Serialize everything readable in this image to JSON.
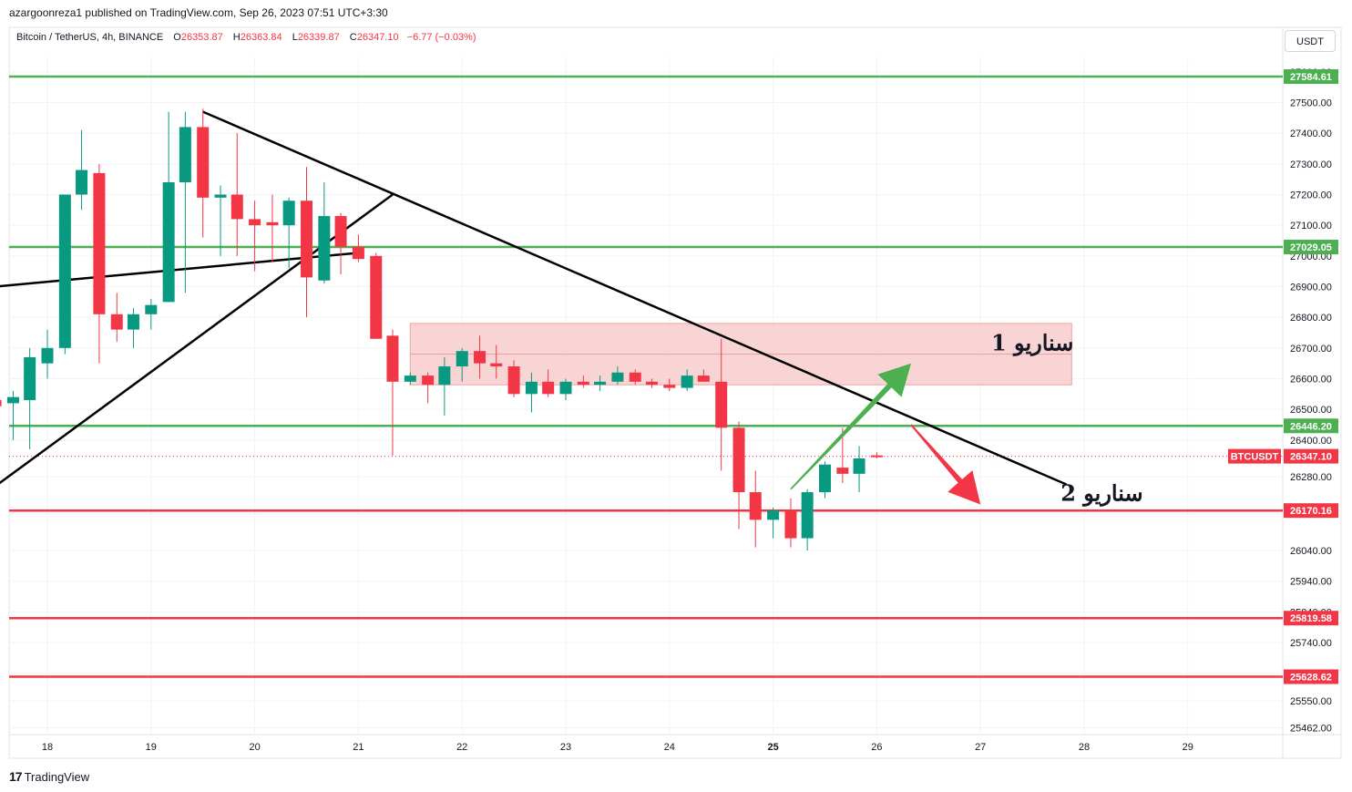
{
  "publisher": "azargoonreza1 published on TradingView.com, Sep 26, 2023 07:51 UTC+3:30",
  "legend": {
    "symbol": "Bitcoin / TetherUS, 4h, BINANCE",
    "open_label": "O",
    "open": "26353.87",
    "high_label": "H",
    "high": "26363.84",
    "low_label": "L",
    "low": "26339.87",
    "close_label": "C",
    "close": "26347.10",
    "change": "−6.77 (−0.03%)"
  },
  "currency": "USDT",
  "footer": {
    "logo_mark": "17",
    "logo_text": "TradingView"
  },
  "colors": {
    "up": "#089981",
    "down": "#f23645",
    "support_line": "#4caf50",
    "resistance_line": "#f23645",
    "zone_fill": "#f7c9c9",
    "arrow_up": "#4caf50",
    "arrow_down": "#f23645"
  },
  "chart_data": {
    "type": "candlestick",
    "symbol": "BTCUSDT",
    "interval": "4h",
    "ylim": [
      25440,
      27650
    ],
    "y_ticks": [
      25462,
      25550,
      25640,
      25740,
      25840,
      25940,
      26040,
      26160,
      26280,
      26400,
      26500,
      26600,
      26700,
      26800,
      26900,
      27000,
      27100,
      27200,
      27300,
      27400,
      27500,
      27600
    ],
    "x_day_labels": [
      "18",
      "19",
      "20",
      "21",
      "22",
      "23",
      "24",
      "25",
      "26",
      "27",
      "28",
      "29"
    ],
    "x_bold_label": "25",
    "last_price": {
      "value": 26347.1,
      "label": "26347.10",
      "ticker": "BTCUSDT"
    },
    "horizontal_levels": [
      {
        "value": 27584.61,
        "label": "27584.61",
        "kind": "support"
      },
      {
        "value": 27029.05,
        "label": "27029.05",
        "kind": "support"
      },
      {
        "value": 26446.2,
        "label": "26446.20",
        "kind": "support"
      },
      {
        "value": 26170.16,
        "label": "26170.16",
        "kind": "resistance"
      },
      {
        "value": 25819.58,
        "label": "25819.58",
        "kind": "resistance"
      },
      {
        "value": 25628.62,
        "label": "25628.62",
        "kind": "resistance"
      }
    ],
    "zone": {
      "top": 26780,
      "bottom": 26580,
      "mid": 26680,
      "x_start": 21.5,
      "x_end": 27.88
    },
    "trendlines": [
      {
        "x1": 17.5,
        "y1": 26900,
        "x2": 21.0,
        "y2": 27010
      },
      {
        "x1": 17.5,
        "y1": 26250,
        "x2": 21.33,
        "y2": 27200
      },
      {
        "x1": 19.5,
        "y1": 27470,
        "x2": 27.83,
        "y2": 26255
      }
    ],
    "scenarios": [
      {
        "label": "سناریو 1",
        "direction": "up",
        "from": [
          25.17,
          26240
        ],
        "to": [
          26.33,
          26650
        ]
      },
      {
        "label": "سناریو 2",
        "direction": "down",
        "from": [
          26.33,
          26450
        ],
        "to": [
          27.0,
          26190
        ]
      }
    ],
    "candles": [
      {
        "x": 17.5,
        "o": 26530,
        "h": 26540,
        "l": 26490,
        "c": 26510
      },
      {
        "x": 17.67,
        "o": 26520,
        "h": 26560,
        "l": 26400,
        "c": 26540
      },
      {
        "x": 17.83,
        "o": 26530,
        "h": 26700,
        "l": 26370,
        "c": 26670
      },
      {
        "x": 18.0,
        "o": 26650,
        "h": 26760,
        "l": 26600,
        "c": 26700
      },
      {
        "x": 18.17,
        "o": 26700,
        "h": 27190,
        "l": 26680,
        "c": 27200
      },
      {
        "x": 18.33,
        "o": 27200,
        "h": 27410,
        "l": 27150,
        "c": 27280
      },
      {
        "x": 18.5,
        "o": 27270,
        "h": 27300,
        "l": 26650,
        "c": 26810
      },
      {
        "x": 18.67,
        "o": 26810,
        "h": 26880,
        "l": 26720,
        "c": 26760
      },
      {
        "x": 18.83,
        "o": 26760,
        "h": 26830,
        "l": 26700,
        "c": 26810
      },
      {
        "x": 19.0,
        "o": 26810,
        "h": 26860,
        "l": 26760,
        "c": 26840
      },
      {
        "x": 19.17,
        "o": 26850,
        "h": 27470,
        "l": 26850,
        "c": 27240
      },
      {
        "x": 19.33,
        "o": 27240,
        "h": 27470,
        "l": 26880,
        "c": 27420
      },
      {
        "x": 19.5,
        "o": 27420,
        "h": 27480,
        "l": 27060,
        "c": 27190
      },
      {
        "x": 19.67,
        "o": 27190,
        "h": 27230,
        "l": 27000,
        "c": 27200
      },
      {
        "x": 19.83,
        "o": 27200,
        "h": 27400,
        "l": 27000,
        "c": 27120
      },
      {
        "x": 20.0,
        "o": 27120,
        "h": 27180,
        "l": 26950,
        "c": 27100
      },
      {
        "x": 20.17,
        "o": 27110,
        "h": 27200,
        "l": 26980,
        "c": 27100
      },
      {
        "x": 20.33,
        "o": 27100,
        "h": 27190,
        "l": 26960,
        "c": 27180
      },
      {
        "x": 20.5,
        "o": 27180,
        "h": 27290,
        "l": 26800,
        "c": 26930
      },
      {
        "x": 20.67,
        "o": 26920,
        "h": 27240,
        "l": 26910,
        "c": 27130
      },
      {
        "x": 20.83,
        "o": 27130,
        "h": 27140,
        "l": 26940,
        "c": 27030
      },
      {
        "x": 21.0,
        "o": 27030,
        "h": 27070,
        "l": 26980,
        "c": 26990
      },
      {
        "x": 21.17,
        "o": 27000,
        "h": 27010,
        "l": 26730,
        "c": 26730
      },
      {
        "x": 21.33,
        "o": 26740,
        "h": 26760,
        "l": 26350,
        "c": 26590
      },
      {
        "x": 21.5,
        "o": 26590,
        "h": 26620,
        "l": 26580,
        "c": 26610
      },
      {
        "x": 21.67,
        "o": 26610,
        "h": 26620,
        "l": 26520,
        "c": 26580
      },
      {
        "x": 21.83,
        "o": 26580,
        "h": 26670,
        "l": 26480,
        "c": 26640
      },
      {
        "x": 22.0,
        "o": 26640,
        "h": 26700,
        "l": 26590,
        "c": 26690
      },
      {
        "x": 22.17,
        "o": 26690,
        "h": 26740,
        "l": 26600,
        "c": 26650
      },
      {
        "x": 22.33,
        "o": 26650,
        "h": 26710,
        "l": 26600,
        "c": 26640
      },
      {
        "x": 22.5,
        "o": 26640,
        "h": 26660,
        "l": 26540,
        "c": 26550
      },
      {
        "x": 22.67,
        "o": 26550,
        "h": 26620,
        "l": 26490,
        "c": 26590
      },
      {
        "x": 22.83,
        "o": 26590,
        "h": 26630,
        "l": 26540,
        "c": 26550
      },
      {
        "x": 23.0,
        "o": 26550,
        "h": 26600,
        "l": 26530,
        "c": 26590
      },
      {
        "x": 23.17,
        "o": 26590,
        "h": 26610,
        "l": 26570,
        "c": 26580
      },
      {
        "x": 23.33,
        "o": 26580,
        "h": 26610,
        "l": 26560,
        "c": 26590
      },
      {
        "x": 23.5,
        "o": 26590,
        "h": 26640,
        "l": 26580,
        "c": 26620
      },
      {
        "x": 23.67,
        "o": 26620,
        "h": 26630,
        "l": 26580,
        "c": 26590
      },
      {
        "x": 23.83,
        "o": 26590,
        "h": 26600,
        "l": 26570,
        "c": 26580
      },
      {
        "x": 24.0,
        "o": 26580,
        "h": 26600,
        "l": 26560,
        "c": 26570
      },
      {
        "x": 24.17,
        "o": 26570,
        "h": 26630,
        "l": 26560,
        "c": 26610
      },
      {
        "x": 24.33,
        "o": 26610,
        "h": 26630,
        "l": 26590,
        "c": 26590
      },
      {
        "x": 24.5,
        "o": 26590,
        "h": 26730,
        "l": 26300,
        "c": 26440
      },
      {
        "x": 24.67,
        "o": 26440,
        "h": 26460,
        "l": 26110,
        "c": 26230
      },
      {
        "x": 24.83,
        "o": 26230,
        "h": 26300,
        "l": 26050,
        "c": 26140
      },
      {
        "x": 25.0,
        "o": 26140,
        "h": 26180,
        "l": 26080,
        "c": 26170
      },
      {
        "x": 25.17,
        "o": 26170,
        "h": 26210,
        "l": 26050,
        "c": 26080
      },
      {
        "x": 25.33,
        "o": 26080,
        "h": 26240,
        "l": 26040,
        "c": 26230
      },
      {
        "x": 25.5,
        "o": 26230,
        "h": 26330,
        "l": 26210,
        "c": 26320
      },
      {
        "x": 25.67,
        "o": 26310,
        "h": 26440,
        "l": 26260,
        "c": 26290
      },
      {
        "x": 25.83,
        "o": 26290,
        "h": 26380,
        "l": 26230,
        "c": 26340
      },
      {
        "x": 26.0,
        "o": 26350,
        "h": 26360,
        "l": 26340,
        "c": 26347
      }
    ]
  }
}
